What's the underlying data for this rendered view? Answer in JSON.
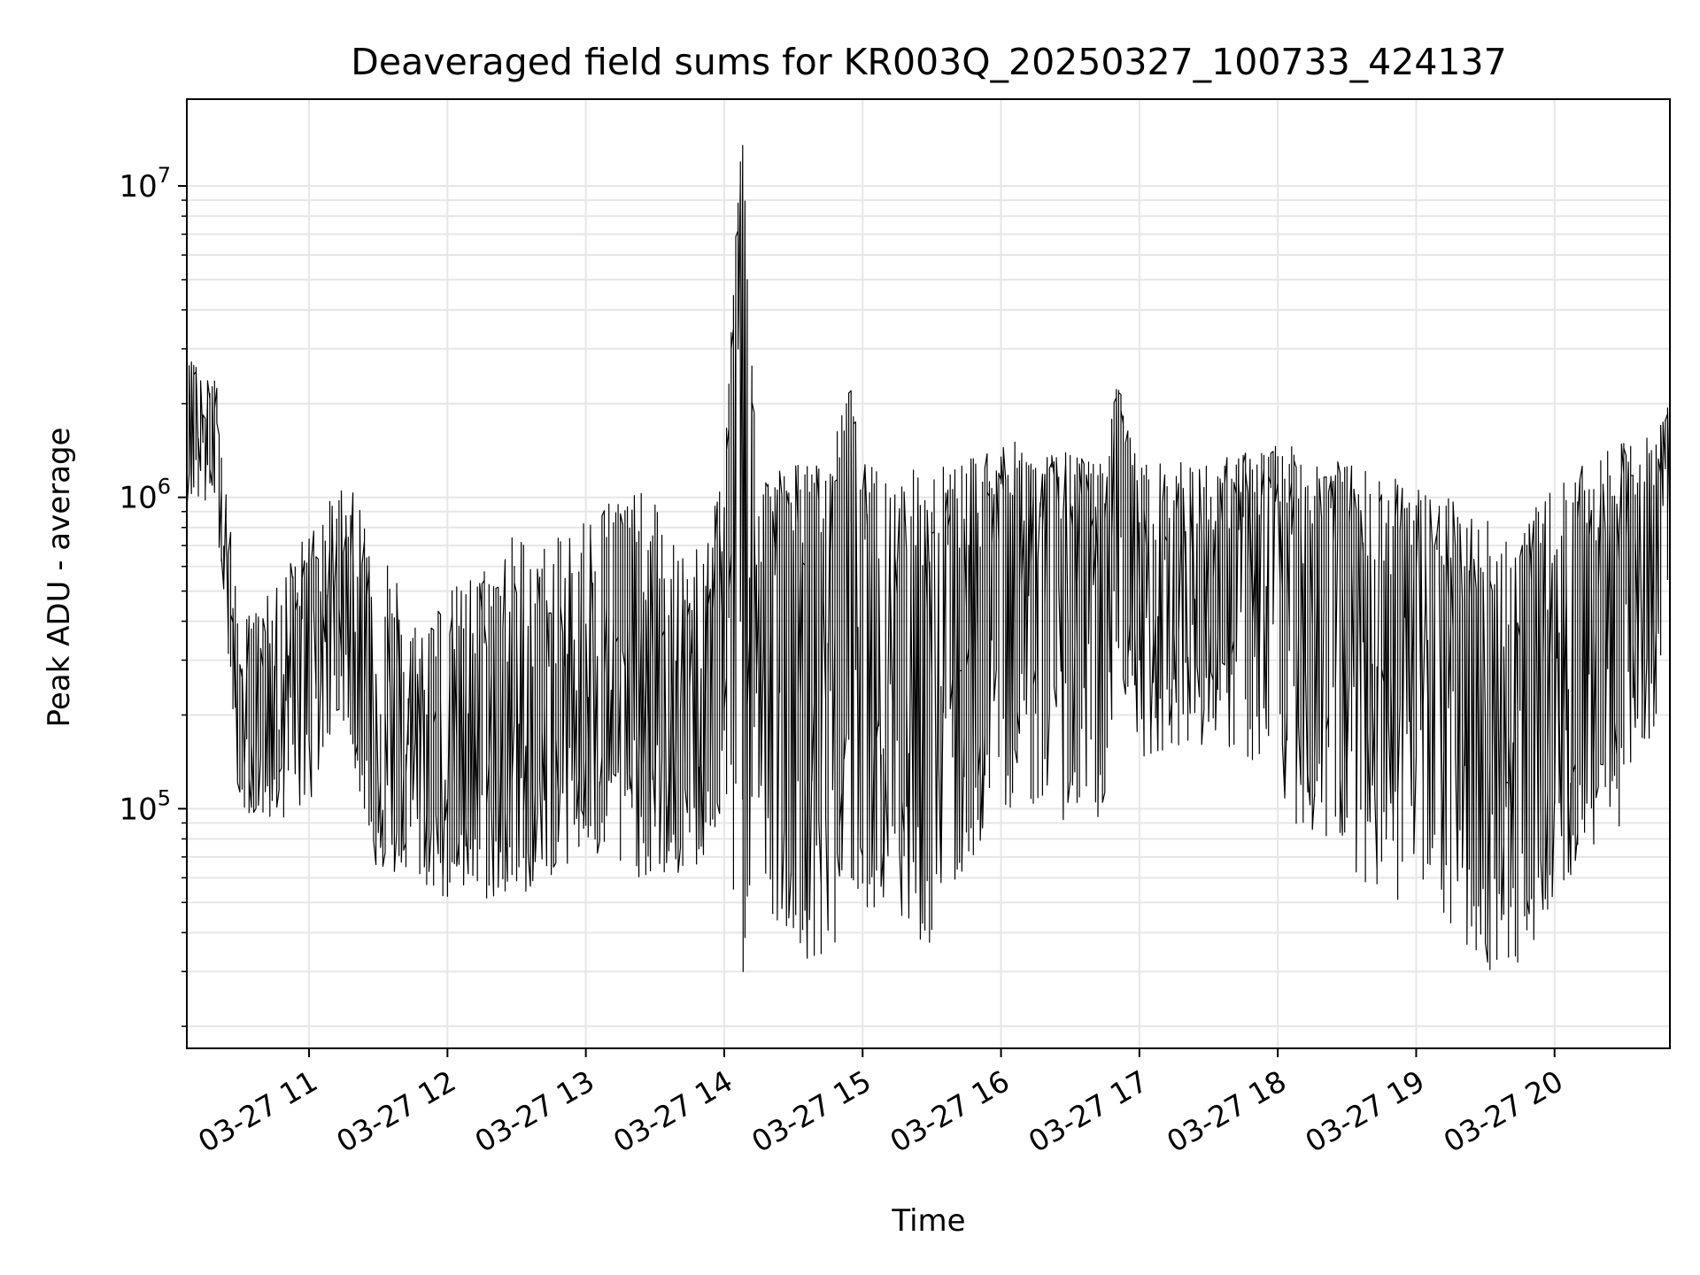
{
  "chart_data": {
    "type": "line",
    "title": "Deaveraged field sums for KR003Q_20250327_100733_424137",
    "xlabel": "Time",
    "ylabel": "Peak ADU - average",
    "yscale": "log",
    "ylim": [
      17000,
      19000000
    ],
    "xlim": [
      "2025-03-27 10:07",
      "2025-03-27 20:50"
    ],
    "grid": true,
    "line_color": "#000000",
    "x_ticks": [
      {
        "value": "2025-03-27 11:00",
        "label": "03-27 11"
      },
      {
        "value": "2025-03-27 12:00",
        "label": "03-27 12"
      },
      {
        "value": "2025-03-27 13:00",
        "label": "03-27 13"
      },
      {
        "value": "2025-03-27 14:00",
        "label": "03-27 14"
      },
      {
        "value": "2025-03-27 15:00",
        "label": "03-27 15"
      },
      {
        "value": "2025-03-27 16:00",
        "label": "03-27 16"
      },
      {
        "value": "2025-03-27 17:00",
        "label": "03-27 17"
      },
      {
        "value": "2025-03-27 18:00",
        "label": "03-27 18"
      },
      {
        "value": "2025-03-27 19:00",
        "label": "03-27 19"
      },
      {
        "value": "2025-03-27 20:00",
        "label": "03-27 20"
      }
    ],
    "y_ticks": [
      {
        "value": 100000,
        "base": "10",
        "exp": "5"
      },
      {
        "value": 1000000,
        "base": "10",
        "exp": "6"
      },
      {
        "value": 10000000,
        "base": "10",
        "exp": "7"
      }
    ],
    "series": [
      {
        "x": [
          "2025-03-27 10:07",
          "2025-03-27 10:10",
          "2025-03-27 10:14",
          "2025-03-27 10:20",
          "2025-03-27 10:30",
          "2025-03-27 10:45",
          "2025-03-27 11:00",
          "2025-03-27 11:15",
          "2025-03-27 11:30",
          "2025-03-27 11:45",
          "2025-03-27 12:00",
          "2025-03-27 12:15",
          "2025-03-27 12:30",
          "2025-03-27 12:45",
          "2025-03-27 13:00",
          "2025-03-27 13:15",
          "2025-03-27 13:30",
          "2025-03-27 13:45",
          "2025-03-27 14:00",
          "2025-03-27 14:08",
          "2025-03-27 14:15",
          "2025-03-27 14:30",
          "2025-03-27 14:45",
          "2025-03-27 14:55",
          "2025-03-27 15:00",
          "2025-03-27 15:15",
          "2025-03-27 15:30",
          "2025-03-27 15:45",
          "2025-03-27 16:00",
          "2025-03-27 16:15",
          "2025-03-27 16:30",
          "2025-03-27 16:45",
          "2025-03-27 16:51",
          "2025-03-27 17:00",
          "2025-03-27 17:15",
          "2025-03-27 17:30",
          "2025-03-27 17:45",
          "2025-03-27 18:00",
          "2025-03-27 18:15",
          "2025-03-27 18:30",
          "2025-03-27 18:45",
          "2025-03-27 19:00",
          "2025-03-27 19:15",
          "2025-03-27 19:30",
          "2025-03-27 19:45",
          "2025-03-27 20:00",
          "2025-03-27 20:15",
          "2025-03-27 20:30",
          "2025-03-27 20:45",
          "2025-03-27 20:50"
        ],
        "y": [
          1100000,
          2500000,
          1500000,
          1700000,
          170000,
          200000,
          400000,
          600000,
          180000,
          160000,
          140000,
          180000,
          150000,
          200000,
          250000,
          250000,
          150000,
          150000,
          500000,
          13500000,
          400000,
          550000,
          400000,
          2200000,
          500000,
          400000,
          300000,
          500000,
          650000,
          700000,
          700000,
          500000,
          2300000,
          600000,
          500000,
          600000,
          700000,
          800000,
          700000,
          600000,
          500000,
          550000,
          300000,
          200000,
          150000,
          250000,
          400000,
          600000,
          800000,
          2000000
        ],
        "y_low": [
          800000,
          1000000,
          900000,
          1000000,
          100000,
          90000,
          100000,
          200000,
          60000,
          60000,
          50000,
          50000,
          50000,
          60000,
          70000,
          60000,
          60000,
          60000,
          80000,
          30000,
          50000,
          40000,
          25000,
          60000,
          50000,
          40000,
          35000,
          60000,
          100000,
          100000,
          90000,
          90000,
          300000,
          140000,
          160000,
          160000,
          150000,
          100000,
          80000,
          70000,
          50000,
          50000,
          40000,
          30000,
          30000,
          50000,
          70000,
          90000,
          200000,
          600000
        ],
        "y_high": [
          2500000,
          3000000,
          2400000,
          2400000,
          400000,
          500000,
          800000,
          1100000,
          900000,
          400000,
          500000,
          600000,
          800000,
          700000,
          900000,
          1100000,
          1000000,
          600000,
          1200000,
          13500000,
          1200000,
          1300000,
          1300000,
          2200000,
          1300000,
          1200000,
          1300000,
          1300000,
          1600000,
          1400000,
          1400000,
          1300000,
          2300000,
          1300000,
          1300000,
          1300000,
          1400000,
          1500000,
          1400000,
          1300000,
          1200000,
          1100000,
          1000000,
          900000,
          800000,
          1100000,
          1300000,
          1500000,
          1600000,
          2000000
        ]
      }
    ]
  }
}
